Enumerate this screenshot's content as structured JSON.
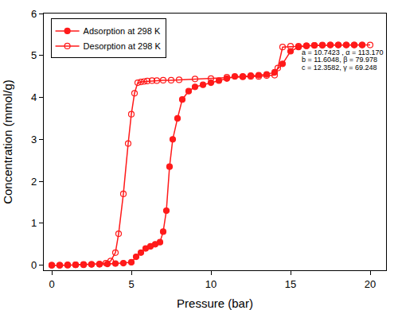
{
  "chart_data": {
    "type": "line",
    "x_label": "Pressure (bar)",
    "y_label": "Concentration (mmol/g)",
    "xlim": [
      -0.5,
      21
    ],
    "ylim": [
      -0.12,
      6
    ],
    "xticks": [
      0,
      5,
      10,
      15,
      20
    ],
    "yticks": [
      0,
      1,
      2,
      3,
      4,
      5,
      6
    ],
    "grid": false,
    "legend": "upper left",
    "annotations": [
      "a = 10.7423 , α = 113.170",
      "b = 11.6048, β = 79.978",
      "c = 12.3582, γ = 69.248"
    ],
    "series": [
      {
        "name": "Adsorption at 298 K",
        "color": "#ff1a1a",
        "marker": "filled",
        "x": [
          0,
          0.5,
          1,
          1.5,
          2,
          2.5,
          3,
          3.5,
          4,
          4.5,
          5,
          5.3,
          5.6,
          5.9,
          6.2,
          6.5,
          6.8,
          7.0,
          7.2,
          7.4,
          7.6,
          7.9,
          8.2,
          8.6,
          9,
          9.5,
          10,
          10.5,
          11,
          11.5,
          12,
          12.5,
          13,
          13.5,
          14,
          14.5,
          15,
          15.5,
          16,
          16.5,
          17,
          17.5,
          18,
          18.5,
          19,
          19.5
        ],
        "values": [
          0,
          0,
          0.01,
          0.01,
          0.02,
          0.02,
          0.02,
          0.03,
          0.04,
          0.05,
          0.07,
          0.2,
          0.3,
          0.4,
          0.45,
          0.5,
          0.55,
          0.8,
          1.3,
          2.35,
          3.0,
          3.5,
          3.95,
          4.15,
          4.25,
          4.3,
          4.35,
          4.4,
          4.45,
          4.5,
          4.5,
          4.52,
          4.53,
          4.55,
          4.6,
          4.8,
          5.1,
          5.2,
          5.23,
          5.24,
          5.25,
          5.25,
          5.25,
          5.25,
          5.25,
          5.25
        ]
      },
      {
        "name": "Desorption at 298 K",
        "color": "#ff1a1a",
        "marker": "open",
        "x": [
          20,
          19.5,
          19,
          18.5,
          18,
          17.5,
          17,
          16.5,
          16,
          15.5,
          15,
          14.5,
          14.2,
          14,
          13.5,
          13,
          12.5,
          12,
          11,
          10,
          9,
          8,
          7.5,
          7,
          6.6,
          6.3,
          6,
          5.8,
          5.6,
          5.4,
          5.2,
          5,
          4.8,
          4.5,
          4.2,
          4,
          3.7,
          3.4,
          3,
          2.5,
          2,
          1.5,
          1,
          0.5,
          0
        ],
        "values": [
          5.25,
          5.25,
          5.25,
          5.25,
          5.25,
          5.25,
          5.24,
          5.24,
          5.23,
          5.22,
          5.22,
          5.2,
          4.7,
          4.53,
          4.52,
          4.5,
          4.5,
          4.49,
          4.48,
          4.45,
          4.44,
          4.42,
          4.41,
          4.41,
          4.4,
          4.4,
          4.39,
          4.38,
          4.37,
          4.35,
          4.1,
          3.6,
          2.9,
          1.7,
          0.75,
          0.3,
          0.1,
          0.05,
          0.03,
          0.02,
          0.01,
          0.01,
          0,
          0,
          0
        ]
      }
    ]
  }
}
